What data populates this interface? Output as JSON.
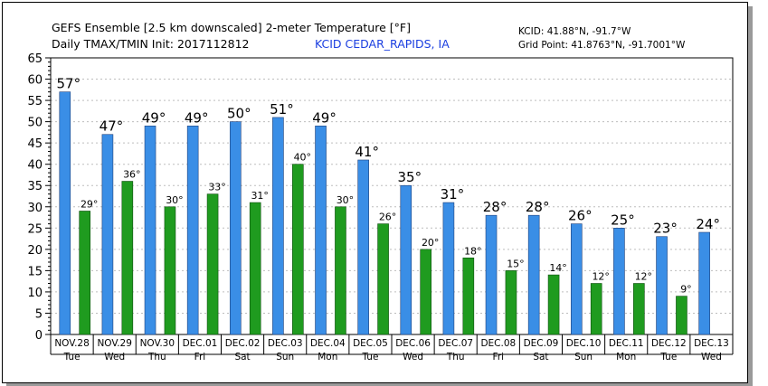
{
  "header": {
    "title_line1": "GEFS Ensemble [2.5 km downscaled] 2-meter Temperature [°F]",
    "title_line2": "Daily TMAX/TMIN Init: 2017112812",
    "station": "KCID CEDAR_RAPIDS, IA",
    "station_coords": "KCID: 41.88°N, -91.7°W",
    "grid_point": "Grid Point: 41.8763°N, -91.7001°W"
  },
  "colors": {
    "tmax": "#3a8ee6",
    "tmin": "#1f9b1f",
    "station_text": "#1a3ee0",
    "grid": "#bdbdbd"
  },
  "chart_data": {
    "type": "bar",
    "title": "GEFS Ensemble [2.5 km downscaled] 2-meter Temperature [°F]",
    "ylim": [
      0,
      65
    ],
    "yticks": [
      0,
      5,
      10,
      15,
      20,
      25,
      30,
      35,
      40,
      45,
      50,
      55,
      60,
      65
    ],
    "grid": "horizontal dotted",
    "categories": [
      "NOV.28",
      "NOV.29",
      "NOV.30",
      "DEC.01",
      "DEC.02",
      "DEC.03",
      "DEC.04",
      "DEC.05",
      "DEC.06",
      "DEC.07",
      "DEC.08",
      "DEC.09",
      "DEC.10",
      "DEC.11",
      "DEC.12",
      "DEC.13"
    ],
    "weekdays": [
      "Tue",
      "Wed",
      "Thu",
      "Fri",
      "Sat",
      "Sun",
      "Mon",
      "Tue",
      "Wed",
      "Thu",
      "Fri",
      "Sat",
      "Sun",
      "Mon",
      "Tue",
      "Wed"
    ],
    "series": [
      {
        "values": [
          57,
          47,
          49,
          49,
          50,
          51,
          49,
          41,
          35,
          31,
          28,
          28,
          26,
          25,
          23,
          24
        ],
        "labels": [
          "57°",
          "47°",
          "49°",
          "49°",
          "50°",
          "51°",
          "49°",
          "41°",
          "35°",
          "31°",
          "28°",
          "28°",
          "26°",
          "25°",
          "23°",
          "24°"
        ]
      },
      {
        "values": [
          29,
          36,
          30,
          33,
          31,
          40,
          30,
          26,
          20,
          18,
          15,
          14,
          12,
          12,
          9,
          null
        ],
        "labels": [
          "29°",
          "36°",
          "30°",
          "33°",
          "31°",
          "40°",
          "30°",
          "26°",
          "20°",
          "18°",
          "15°",
          "14°",
          "12°",
          "12°",
          "9°",
          ""
        ]
      }
    ]
  }
}
